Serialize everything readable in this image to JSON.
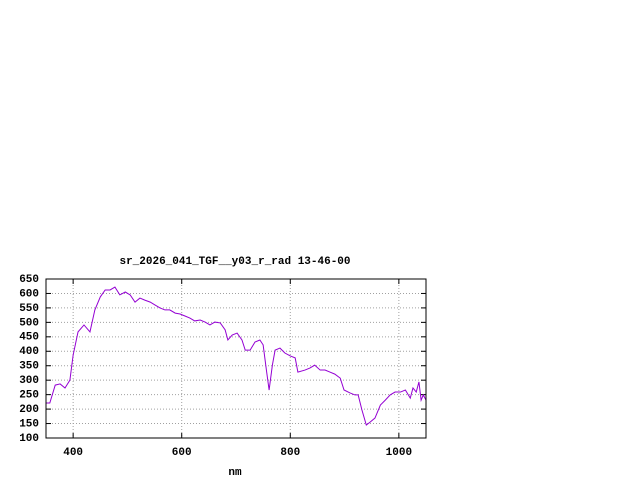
{
  "chart_data": {
    "type": "line",
    "title": "sr_2026_041_TGF__y03_r_rad 13-46-00",
    "x_label": "nm",
    "xlim": [
      350,
      1050
    ],
    "ylim": [
      100,
      650
    ],
    "xticks": [
      400,
      600,
      800,
      1000
    ],
    "yticks": [
      100,
      150,
      200,
      250,
      300,
      350,
      400,
      450,
      500,
      550,
      600,
      650
    ],
    "grid": true,
    "x": [
      350,
      357,
      367,
      376,
      385,
      394,
      400,
      409,
      420,
      431,
      440,
      450,
      459,
      468,
      477,
      486,
      496,
      505,
      514,
      523,
      532,
      542,
      551,
      560,
      569,
      578,
      588,
      597,
      606,
      615,
      624,
      634,
      643,
      652,
      661,
      671,
      680,
      685,
      693,
      702,
      711,
      717,
      726,
      735,
      744,
      750,
      756,
      761,
      767,
      772,
      781,
      790,
      800,
      809,
      814,
      827,
      836,
      845,
      855,
      864,
      873,
      882,
      892,
      899,
      910,
      919,
      925,
      932,
      940,
      947,
      956,
      966,
      975,
      984,
      993,
      1003,
      1012,
      1021,
      1026,
      1032,
      1037,
      1041,
      1045,
      1050
    ],
    "series": [
      {
        "color": "#9400d3",
        "values": [
          221,
          221,
          283,
          287,
          273,
          300,
          387,
          467,
          491,
          467,
          543,
          588,
          612,
          612,
          622,
          595,
          605,
          595,
          570,
          584,
          577,
          570,
          560,
          550,
          543,
          543,
          532,
          529,
          522,
          515,
          505,
          508,
          501,
          491,
          501,
          498,
          474,
          439,
          456,
          463,
          439,
          404,
          404,
          432,
          439,
          422,
          335,
          266,
          352,
          404,
          411,
          394,
          384,
          377,
          328,
          335,
          342,
          352,
          335,
          335,
          328,
          321,
          307,
          266,
          256,
          249,
          249,
          197,
          145,
          155,
          169,
          214,
          231,
          249,
          259,
          259,
          266,
          238,
          273,
          259,
          294,
          231,
          249,
          231
        ]
      }
    ]
  }
}
